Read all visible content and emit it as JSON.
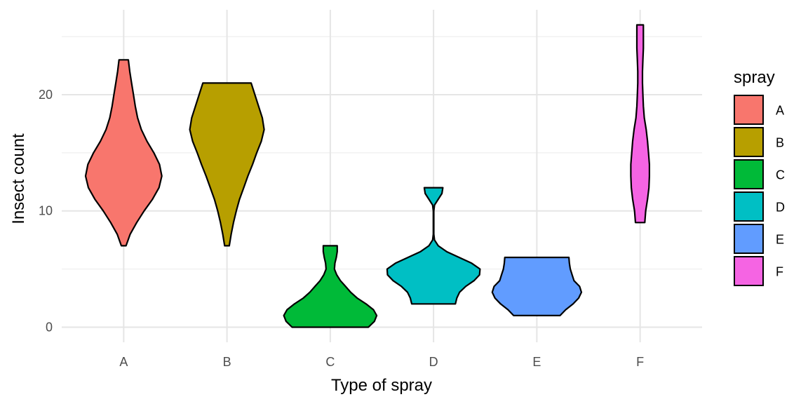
{
  "chart_data": {
    "type": "violin",
    "xlabel": "Type of spray",
    "ylabel": "Insect count",
    "categories": [
      "A",
      "B",
      "C",
      "D",
      "E",
      "F"
    ],
    "ylim": [
      -1.3,
      27.3
    ],
    "y_ticks": [
      0,
      10,
      20
    ],
    "y_minor_ticks": [
      5,
      15,
      25
    ],
    "grid": true,
    "legend": {
      "title": "spray",
      "position": "right"
    },
    "colors": {
      "A": "#F8766D",
      "B": "#B79F00",
      "C": "#00BA38",
      "D": "#00BFC4",
      "E": "#619CFF",
      "F": "#F564E3"
    },
    "series": [
      {
        "category": "A",
        "min": 7,
        "max": 23,
        "profile": [
          [
            7,
            0.05
          ],
          [
            8,
            0.14
          ],
          [
            9,
            0.28
          ],
          [
            10,
            0.44
          ],
          [
            11,
            0.62
          ],
          [
            12,
            0.76
          ],
          [
            13,
            0.82
          ],
          [
            14,
            0.77
          ],
          [
            15,
            0.65
          ],
          [
            16,
            0.5
          ],
          [
            17,
            0.38
          ],
          [
            18,
            0.3
          ],
          [
            19,
            0.25
          ],
          [
            20,
            0.21
          ],
          [
            21,
            0.17
          ],
          [
            22,
            0.13
          ],
          [
            23,
            0.1
          ]
        ]
      },
      {
        "category": "B",
        "min": 7,
        "max": 21,
        "profile": [
          [
            7,
            0.05
          ],
          [
            8,
            0.09
          ],
          [
            9,
            0.14
          ],
          [
            10,
            0.2
          ],
          [
            11,
            0.27
          ],
          [
            12,
            0.36
          ],
          [
            13,
            0.45
          ],
          [
            14,
            0.55
          ],
          [
            15,
            0.64
          ],
          [
            16,
            0.74
          ],
          [
            17,
            0.8
          ],
          [
            18,
            0.76
          ],
          [
            19,
            0.68
          ],
          [
            20,
            0.6
          ],
          [
            21,
            0.52
          ]
        ]
      },
      {
        "category": "C",
        "min": 0,
        "max": 7,
        "profile": [
          [
            0,
            0.82
          ],
          [
            0.5,
            0.95
          ],
          [
            1,
            1.0
          ],
          [
            1.5,
            0.93
          ],
          [
            2,
            0.77
          ],
          [
            2.5,
            0.58
          ],
          [
            3,
            0.44
          ],
          [
            3.5,
            0.33
          ],
          [
            4,
            0.22
          ],
          [
            4.5,
            0.14
          ],
          [
            5,
            0.09
          ],
          [
            5.5,
            0.1
          ],
          [
            6,
            0.13
          ],
          [
            6.5,
            0.15
          ],
          [
            7,
            0.15
          ]
        ]
      },
      {
        "category": "D",
        "min": 2,
        "max": 12,
        "profile": [
          [
            2,
            0.47
          ],
          [
            2.5,
            0.5
          ],
          [
            3,
            0.56
          ],
          [
            3.5,
            0.69
          ],
          [
            4,
            0.87
          ],
          [
            4.5,
            0.99
          ],
          [
            5,
            1.0
          ],
          [
            5.5,
            0.82
          ],
          [
            6,
            0.55
          ],
          [
            6.5,
            0.28
          ],
          [
            7,
            0.1
          ],
          [
            7.5,
            0.02
          ],
          [
            8,
            0.005
          ],
          [
            9,
            0.005
          ],
          [
            10,
            0.005
          ],
          [
            10.5,
            0.02
          ],
          [
            11,
            0.1
          ],
          [
            11.5,
            0.18
          ],
          [
            12,
            0.2
          ]
        ]
      },
      {
        "category": "E",
        "min": 1,
        "max": 6,
        "profile": [
          [
            1,
            0.5
          ],
          [
            1.5,
            0.62
          ],
          [
            2,
            0.78
          ],
          [
            2.5,
            0.9
          ],
          [
            3,
            0.96
          ],
          [
            3.5,
            0.92
          ],
          [
            4,
            0.8
          ],
          [
            4.5,
            0.76
          ],
          [
            5,
            0.72
          ],
          [
            5.5,
            0.7
          ],
          [
            6,
            0.69
          ]
        ]
      },
      {
        "category": "F",
        "min": 9,
        "max": 26,
        "profile": [
          [
            9,
            0.1
          ],
          [
            10,
            0.12
          ],
          [
            11,
            0.16
          ],
          [
            12,
            0.19
          ],
          [
            13,
            0.2
          ],
          [
            14,
            0.2
          ],
          [
            15,
            0.18
          ],
          [
            16,
            0.16
          ],
          [
            17,
            0.13
          ],
          [
            18,
            0.09
          ],
          [
            19,
            0.07
          ],
          [
            20,
            0.06
          ],
          [
            21,
            0.05
          ],
          [
            22,
            0.05
          ],
          [
            23,
            0.06
          ],
          [
            24,
            0.07
          ],
          [
            25,
            0.07
          ],
          [
            26,
            0.07
          ]
        ]
      }
    ]
  }
}
